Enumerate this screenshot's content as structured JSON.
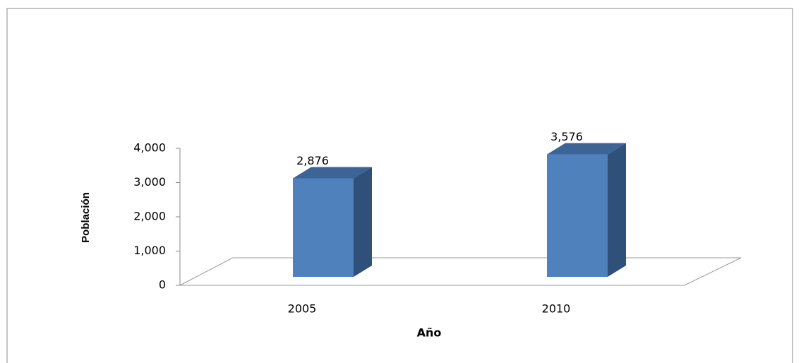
{
  "chart_data": {
    "type": "bar3d",
    "categories": [
      "2005",
      "2010"
    ],
    "values": [
      2876,
      3576
    ],
    "value_labels": [
      "2,876",
      "3,576"
    ],
    "color": "#4f81bd",
    "xlabel": "Año",
    "ylabel": "Población",
    "ylim": [
      0,
      4000
    ],
    "yticks": [
      0,
      {
        "value": 1000,
        "label": "1,000"
      },
      {
        "value": 2000,
        "label": "2,000"
      },
      {
        "value": 3000,
        "label": "3,000"
      },
      {
        "value": 4000,
        "label": "4,000"
      }
    ]
  }
}
